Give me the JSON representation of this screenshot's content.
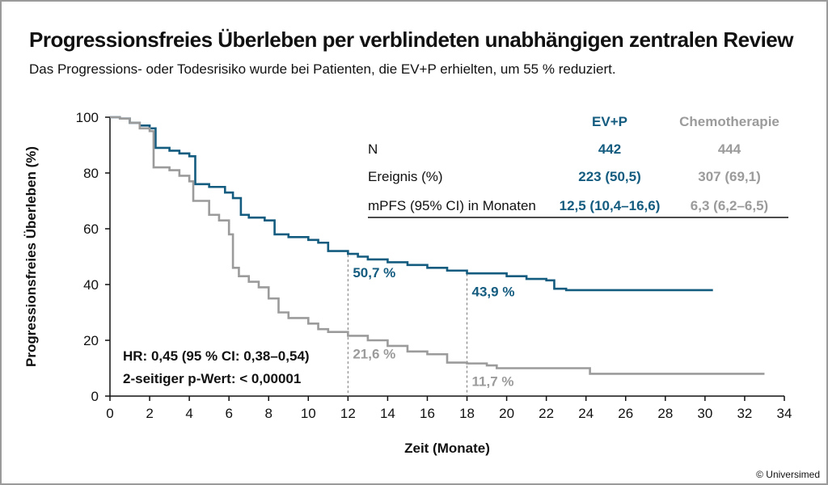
{
  "header": {
    "title": "Progressionsfreies Überleben per verblindeten unabhängigen zentralen Review",
    "subtitle": "Das Progressions- oder Todesrisiko wurde bei Patienten, die EV+P erhielten, um 55 % reduziert."
  },
  "copyright": "© Universimed",
  "colors": {
    "ev": "#135b7f",
    "chemo": "#9b9b9b",
    "text": "#111111"
  },
  "table": {
    "col_ev": "EV+P",
    "col_chemo": "Chemotherapie",
    "rows": [
      {
        "label": "N",
        "ev": "442",
        "chemo": "444"
      },
      {
        "label": "Ereignis (%)",
        "ev": "223 (50,5)",
        "chemo": "307 (69,1)"
      },
      {
        "label": "mPFS (95% CI) in Monaten",
        "ev": "12,5 (10,4–16,6)",
        "chemo": "6,3 (6,2–6,5)"
      }
    ]
  },
  "stats": {
    "hr": "HR: 0,45 (95 % CI: 0,38–0,54)",
    "p": "2-seitiger p-Wert: < 0,00001"
  },
  "chart_data": {
    "type": "line",
    "xlabel": "Zeit (Monate)",
    "ylabel": "Progressionsfreies Überleben (%)",
    "xlim": [
      0,
      34
    ],
    "ylim": [
      0,
      100
    ],
    "xticks": [
      0,
      2,
      4,
      6,
      8,
      10,
      12,
      14,
      16,
      18,
      20,
      22,
      24,
      26,
      28,
      30,
      32,
      34
    ],
    "yticks": [
      0,
      20,
      40,
      60,
      80,
      100
    ],
    "series": [
      {
        "name": "EV+P",
        "color": "#135b7f",
        "x": [
          0,
          0.5,
          1,
          1.5,
          2,
          2.3,
          3,
          3.5,
          4,
          4.3,
          5,
          5.8,
          6.2,
          6.6,
          7,
          7.8,
          8.3,
          9,
          10,
          10.5,
          11,
          12,
          12.5,
          13,
          14,
          15,
          16,
          17,
          18,
          20,
          21,
          22,
          22.4,
          23,
          26,
          28,
          30.4
        ],
        "y": [
          100,
          99.5,
          98,
          97,
          96,
          89,
          88,
          87,
          86,
          76,
          75,
          73,
          71,
          65,
          64,
          63,
          58,
          57,
          56,
          55,
          52,
          51,
          50,
          49,
          48,
          47,
          46,
          45,
          44,
          43,
          42,
          41.5,
          38.5,
          38,
          38,
          38,
          38
        ]
      },
      {
        "name": "Chemotherapie",
        "color": "#9b9b9b",
        "x": [
          0,
          0.5,
          1,
          1.5,
          2,
          2.2,
          3,
          3.5,
          4,
          4.2,
          5,
          5.5,
          6,
          6.2,
          6.5,
          7,
          7.5,
          8,
          8.5,
          9,
          10,
          10.5,
          11,
          12,
          13,
          14,
          15,
          16,
          17,
          18,
          19,
          19.5,
          20,
          22,
          24,
          24.2,
          26,
          28,
          30,
          33
        ],
        "y": [
          100,
          99.5,
          98,
          96,
          95,
          82,
          81,
          79,
          77,
          70,
          65,
          63,
          58,
          46,
          43,
          41,
          39,
          35,
          30,
          28,
          26,
          24,
          23,
          21.6,
          20,
          18,
          16,
          15,
          12,
          11.7,
          11,
          10,
          10,
          10,
          10,
          8,
          8,
          8,
          8,
          8
        ]
      }
    ],
    "annotations": [
      {
        "x": 12,
        "y": 50.7,
        "text": "50,7 %",
        "series": "EV+P"
      },
      {
        "x": 18,
        "y": 43.9,
        "text": "43,9 %",
        "series": "EV+P"
      },
      {
        "x": 12,
        "y": 21.6,
        "text": "21,6 %",
        "series": "Chemotherapie"
      },
      {
        "x": 18,
        "y": 11.7,
        "text": "11,7 %",
        "series": "Chemotherapie"
      }
    ]
  }
}
